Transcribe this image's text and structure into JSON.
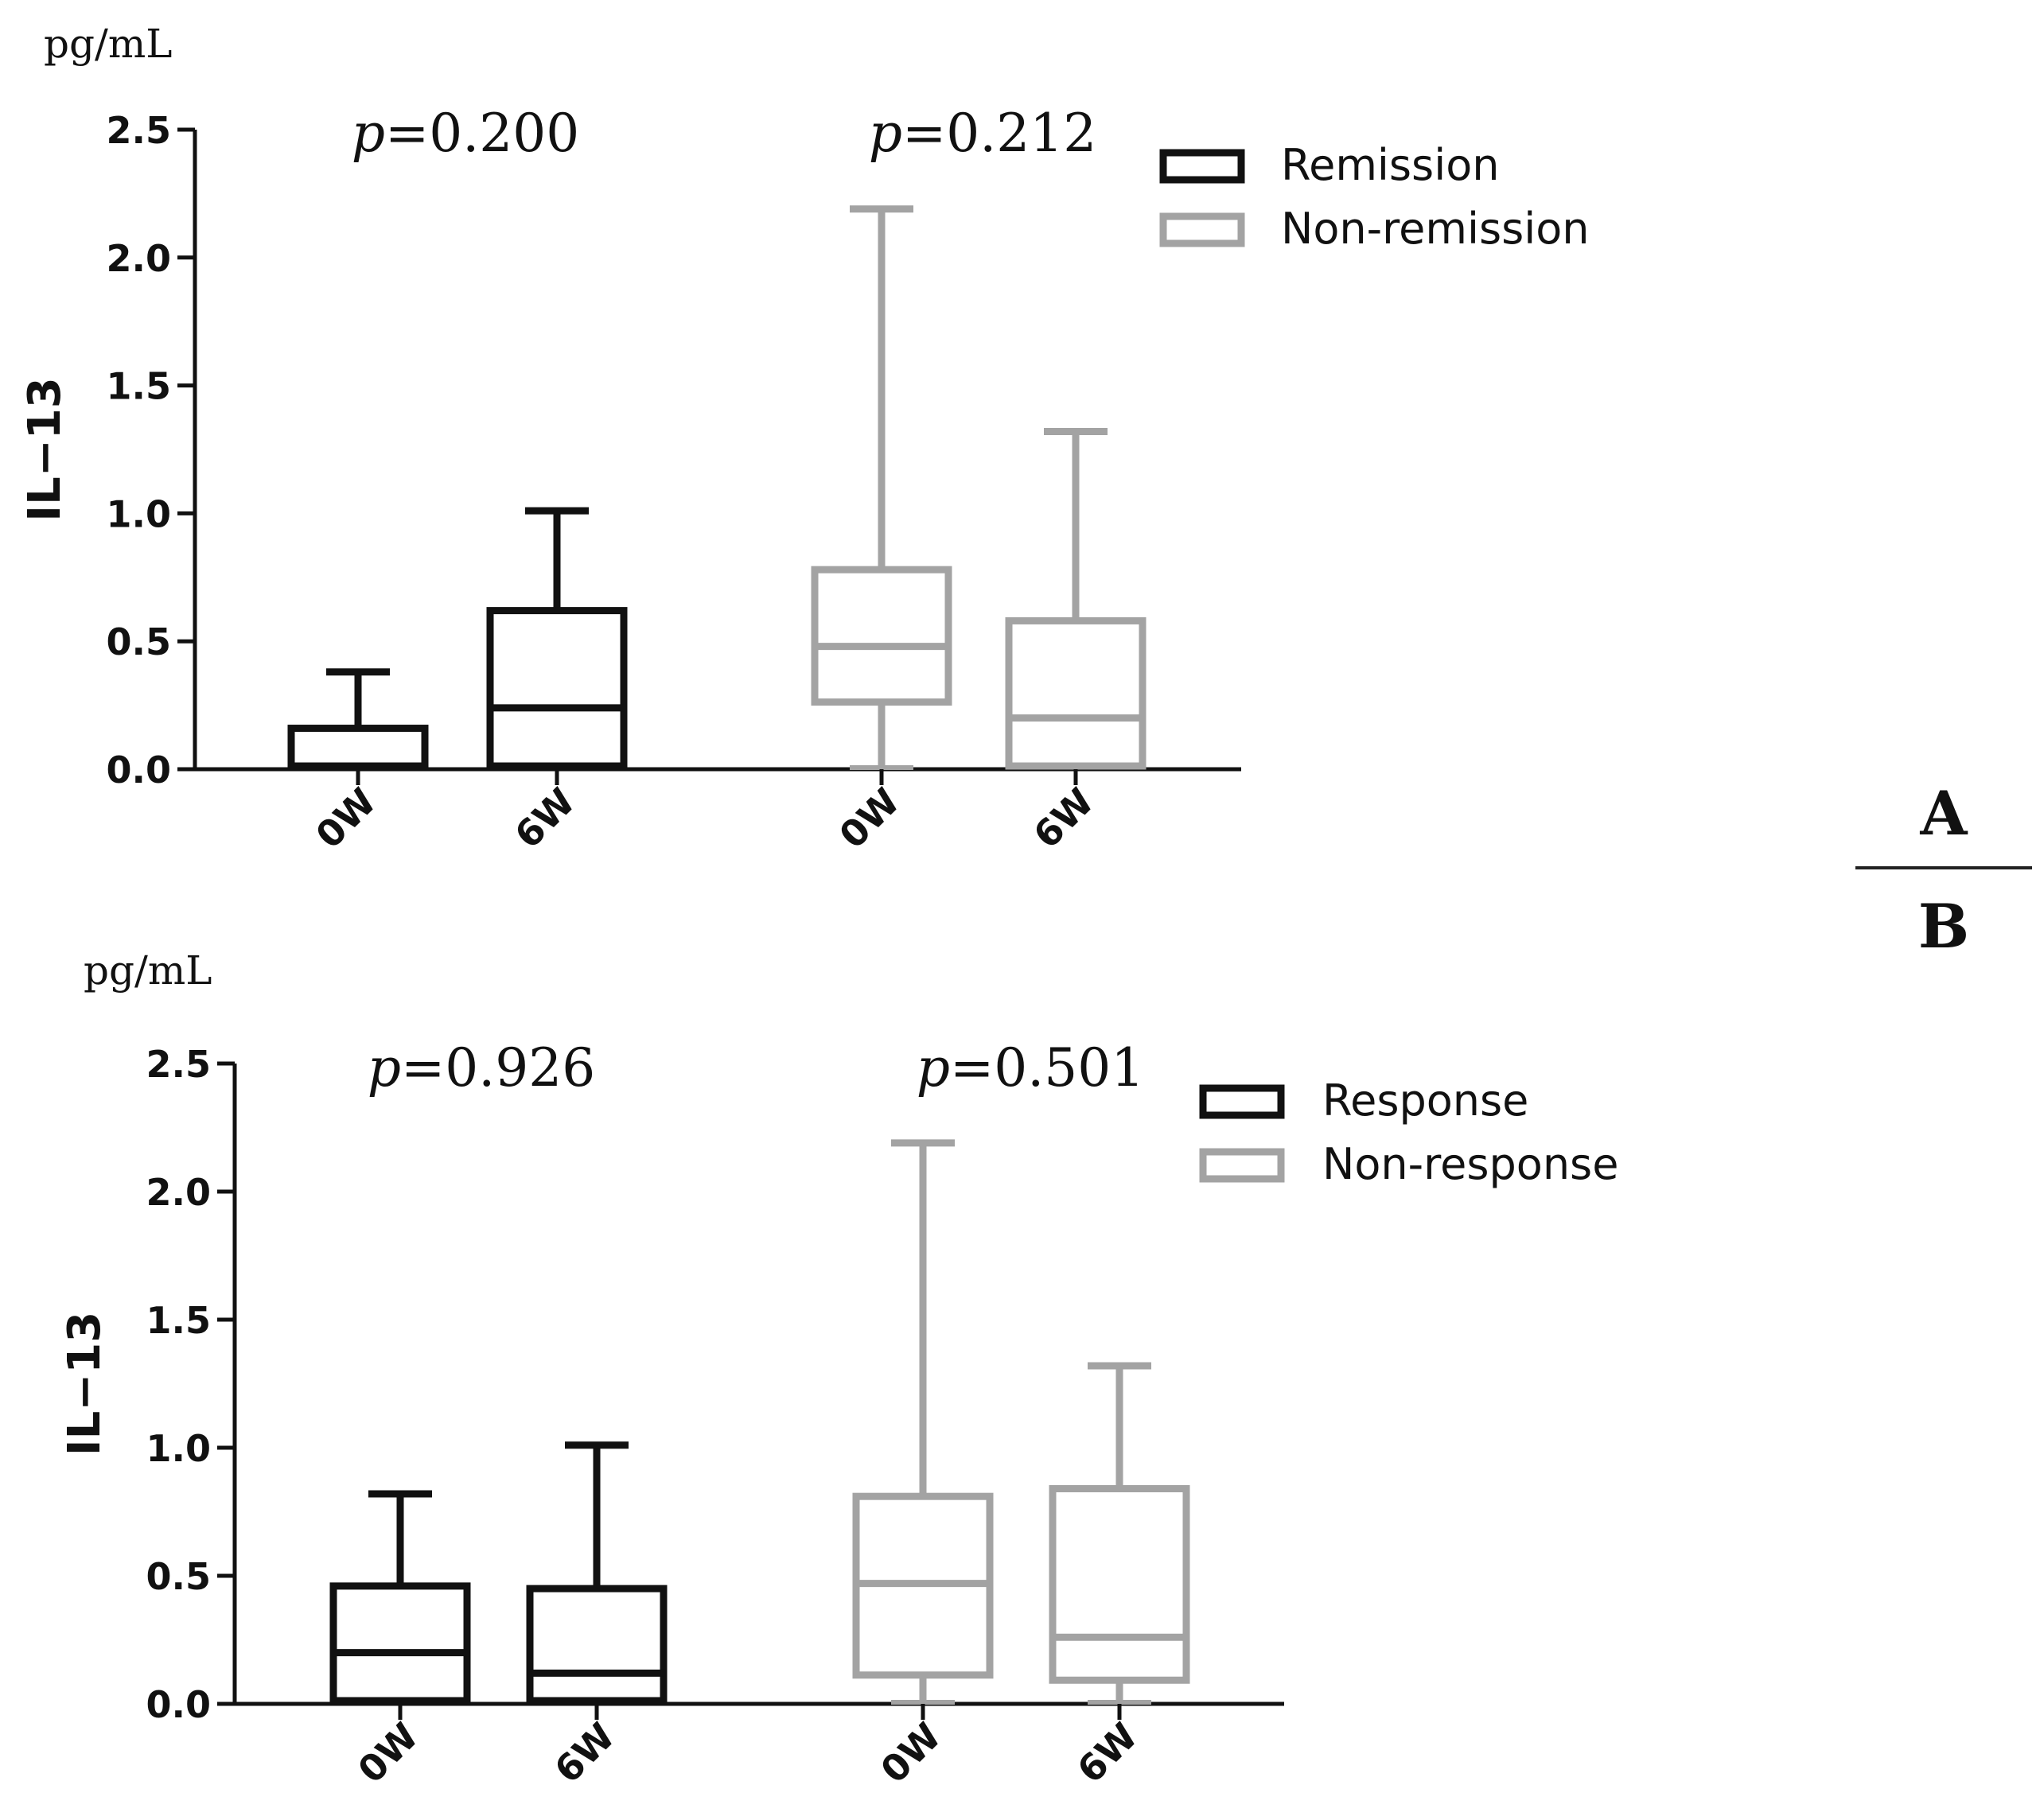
{
  "colors": {
    "group_a": "#111111",
    "group_b": "#a3a3a3",
    "axis": "#111111"
  },
  "panel_labels": {
    "top": "A",
    "bottom": "B"
  },
  "chart_data": [
    {
      "type": "box",
      "panel": "A",
      "unit_label": "pg/mL",
      "ylabel": "IL−13",
      "ylim": [
        0,
        2.5
      ],
      "yticks": [
        "0.0",
        "0.5",
        "1.0",
        "1.5",
        "2.0",
        "2.5"
      ],
      "grid": false,
      "legend": {
        "position": "top-right",
        "entries": [
          "Remission",
          "Non-remission"
        ]
      },
      "p_values": [
        {
          "prefix": "p",
          "text": "=0.200"
        },
        {
          "prefix": "p",
          "text": "=0.212"
        }
      ],
      "series": [
        {
          "name": "Remission",
          "color_key": "group_a",
          "boxes": [
            {
              "label": "0W",
              "min": 0.0,
              "q1": 0.0,
              "median": 0.0,
              "q3": 0.16,
              "max": 0.38
            },
            {
              "label": "6W",
              "min": 0.0,
              "q1": 0.0,
              "median": 0.24,
              "q3": 0.62,
              "max": 1.01
            }
          ]
        },
        {
          "name": "Non-remission",
          "color_key": "group_b",
          "boxes": [
            {
              "label": "0W",
              "min": 0.0,
              "q1": 0.25,
              "median": 0.48,
              "q3": 0.78,
              "max": 2.19
            },
            {
              "label": "6W",
              "min": 0.0,
              "q1": 0.0,
              "median": 0.2,
              "q3": 0.58,
              "max": 1.32
            }
          ]
        }
      ]
    },
    {
      "type": "box",
      "panel": "B",
      "unit_label": "pg/mL",
      "ylabel": "IL−13",
      "ylim": [
        0,
        2.5
      ],
      "yticks": [
        "0.0",
        "0.5",
        "1.0",
        "1.5",
        "2.0",
        "2.5"
      ],
      "grid": false,
      "legend": {
        "position": "top-right",
        "entries": [
          "Response",
          "Non-response"
        ]
      },
      "p_values": [
        {
          "prefix": "p",
          "text": "=0.926"
        },
        {
          "prefix": "p",
          "text": "=0.501"
        }
      ],
      "series": [
        {
          "name": "Response",
          "color_key": "group_a",
          "boxes": [
            {
              "label": "0W",
              "min": 0.0,
              "q1": 0.0,
              "median": 0.2,
              "q3": 0.46,
              "max": 0.82
            },
            {
              "label": "6W",
              "min": 0.0,
              "q1": 0.0,
              "median": 0.12,
              "q3": 0.45,
              "max": 1.01
            }
          ]
        },
        {
          "name": "Non-response",
          "color_key": "group_b",
          "boxes": [
            {
              "label": "0W",
              "min": 0.0,
              "q1": 0.1,
              "median": 0.47,
              "q3": 0.81,
              "max": 2.19
            },
            {
              "label": "6W",
              "min": 0.0,
              "q1": 0.08,
              "median": 0.26,
              "q3": 0.84,
              "max": 1.32
            }
          ]
        }
      ]
    }
  ]
}
